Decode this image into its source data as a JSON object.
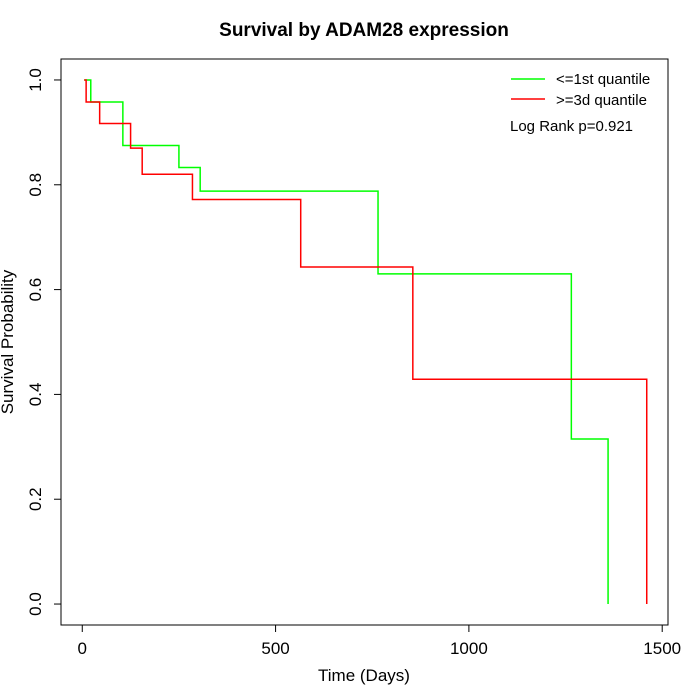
{
  "chart_data": {
    "type": "line",
    "subtype": "kaplan-meier-step",
    "title": "Survival by ADAM28 expression",
    "xlabel": "Time (Days)",
    "ylabel": "Survival Probability",
    "xlim": [
      -55,
      1515
    ],
    "ylim": [
      -0.04,
      1.04
    ],
    "xticks": [
      0,
      500,
      1000,
      1500
    ],
    "yticks": [
      0.0,
      0.2,
      0.4,
      0.6,
      0.8,
      1.0
    ],
    "xtick_labels": [
      "0",
      "500",
      "1000",
      "1500"
    ],
    "ytick_labels": [
      "0.0",
      "0.2",
      "0.4",
      "0.6",
      "0.8",
      "1.0"
    ],
    "grid": false,
    "legend_position": "top-right",
    "annotation": "Log Rank p=0.921",
    "series": [
      {
        "name": "<=1st quantile",
        "color": "#00ff00",
        "points": [
          [
            5,
            1.0
          ],
          [
            22,
            1.0
          ],
          [
            22,
            0.958
          ],
          [
            105,
            0.958
          ],
          [
            105,
            0.875
          ],
          [
            250,
            0.875
          ],
          [
            250,
            0.833
          ],
          [
            305,
            0.833
          ],
          [
            305,
            0.788
          ],
          [
            765,
            0.788
          ],
          [
            765,
            0.63
          ],
          [
            1265,
            0.63
          ],
          [
            1265,
            0.315
          ],
          [
            1360,
            0.315
          ],
          [
            1360,
            0.0
          ]
        ]
      },
      {
        "name": ">=3d quantile",
        "color": "#ff0000",
        "points": [
          [
            5,
            1.0
          ],
          [
            10,
            1.0
          ],
          [
            10,
            0.958
          ],
          [
            45,
            0.958
          ],
          [
            45,
            0.917
          ],
          [
            125,
            0.917
          ],
          [
            125,
            0.87
          ],
          [
            155,
            0.87
          ],
          [
            155,
            0.82
          ],
          [
            285,
            0.82
          ],
          [
            285,
            0.772
          ],
          [
            565,
            0.772
          ],
          [
            565,
            0.643
          ],
          [
            855,
            0.643
          ],
          [
            855,
            0.429
          ],
          [
            1460,
            0.429
          ],
          [
            1460,
            0.0
          ]
        ]
      }
    ]
  }
}
